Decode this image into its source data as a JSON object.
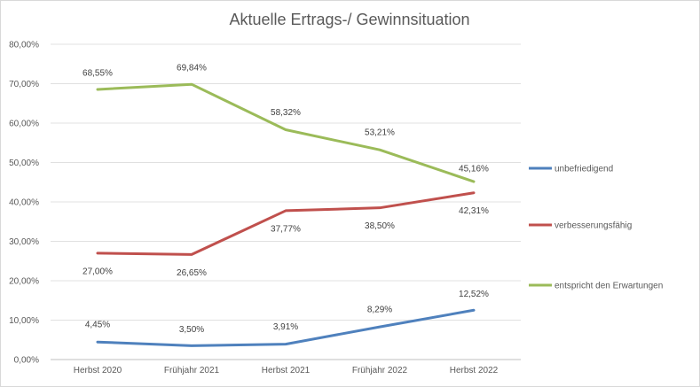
{
  "chart_data": {
    "type": "line",
    "title": "Aktuelle Ertrags-/ Gewinnsituation",
    "categories": [
      "Herbst 2020",
      "Frühjahr 2021",
      "Herbst 2021",
      "Frühjahr 2022",
      "Herbst 2022"
    ],
    "ylim": [
      0,
      80
    ],
    "yticks": [
      0,
      10,
      20,
      30,
      40,
      50,
      60,
      70,
      80
    ],
    "ytick_labels": [
      "0,00%",
      "10,00%",
      "20,00%",
      "30,00%",
      "40,00%",
      "50,00%",
      "60,00%",
      "70,00%",
      "80,00%"
    ],
    "grid": true,
    "legend_position": "right",
    "series": [
      {
        "name": "unbefriedigend",
        "color": "#4f81bd",
        "values": [
          4.45,
          3.5,
          3.91,
          8.29,
          12.52
        ],
        "labels": [
          "4,45%",
          "3,50%",
          "3,91%",
          "8,29%",
          "12,52%"
        ]
      },
      {
        "name": "verbesserungsfähig",
        "color": "#c0504d",
        "values": [
          27.0,
          26.65,
          37.77,
          38.5,
          42.31
        ],
        "labels": [
          "27,00%",
          "26,65%",
          "37,77%",
          "38,50%",
          "42,31%"
        ]
      },
      {
        "name": "entspricht den Erwartungen",
        "color": "#9bbb59",
        "values": [
          68.55,
          69.84,
          58.32,
          53.21,
          45.16
        ],
        "labels": [
          "68,55%",
          "69,84%",
          "58,32%",
          "53,21%",
          "45,16%"
        ]
      }
    ]
  }
}
